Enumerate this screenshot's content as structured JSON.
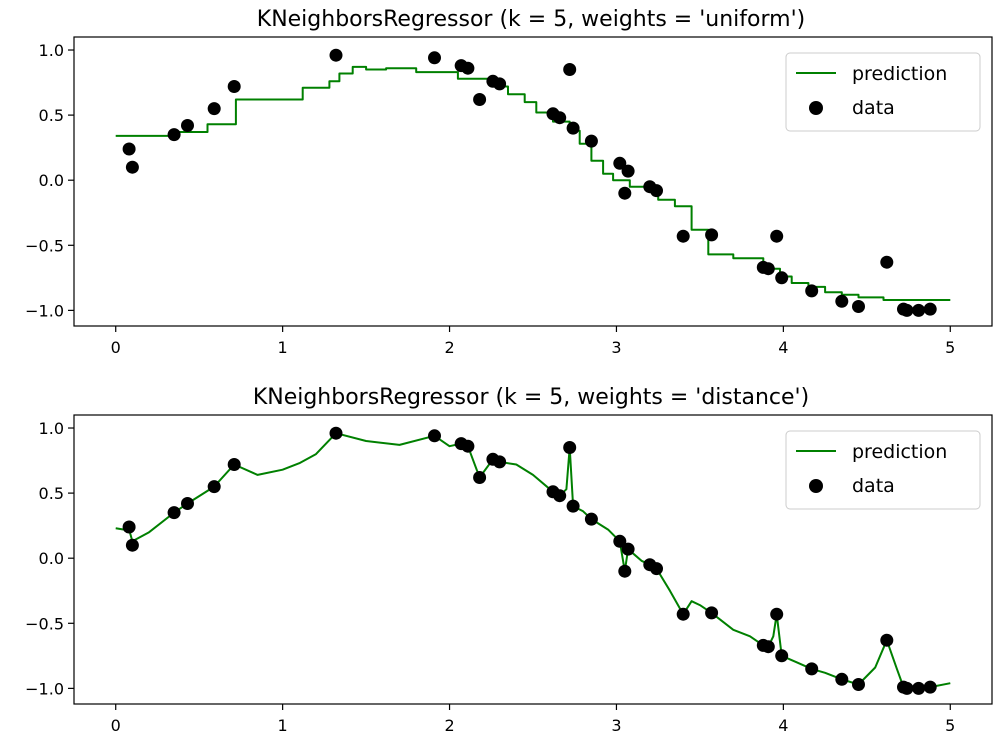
{
  "chart_data": [
    {
      "type": "scatter",
      "title": "KNeighborsRegressor (k = 5, weights = 'uniform')",
      "xlabel": "",
      "ylabel": "",
      "xlim": [
        -0.25,
        5.25
      ],
      "ylim": [
        -1.12,
        1.1
      ],
      "xticks": [
        0,
        1,
        2,
        3,
        4,
        5
      ],
      "xtick_labels": [
        "0",
        "1",
        "2",
        "3",
        "4",
        "5"
      ],
      "yticks": [
        1.0,
        0.5,
        0.0,
        -0.5,
        -1.0
      ],
      "ytick_labels": [
        "1.0",
        "0.5",
        "0.0",
        "−0.5",
        "−1.0"
      ],
      "grid": false,
      "legend_position": "top-right",
      "legend": [
        "prediction",
        "data"
      ],
      "colors": {
        "prediction": "#008000",
        "data": "#000000"
      },
      "series": [
        {
          "name": "prediction",
          "type": "step-line",
          "x": [
            0.0,
            0.35,
            0.35,
            0.55,
            0.55,
            0.72,
            0.72,
            1.12,
            1.12,
            1.28,
            1.28,
            1.34,
            1.34,
            1.42,
            1.42,
            1.5,
            1.5,
            1.62,
            1.62,
            1.8,
            1.8,
            2.05,
            2.05,
            2.25,
            2.25,
            2.35,
            2.35,
            2.45,
            2.45,
            2.52,
            2.52,
            2.62,
            2.62,
            2.72,
            2.72,
            2.78,
            2.78,
            2.85,
            2.85,
            2.92,
            2.92,
            2.98,
            2.98,
            3.08,
            3.08,
            3.18,
            3.18,
            3.25,
            3.25,
            3.35,
            3.35,
            3.45,
            3.45,
            3.55,
            3.55,
            3.7,
            3.7,
            3.88,
            3.88,
            3.98,
            3.98,
            4.05,
            4.05,
            4.15,
            4.15,
            4.25,
            4.25,
            4.35,
            4.35,
            4.45,
            4.45,
            4.6,
            4.6,
            5.0
          ],
          "y": [
            0.34,
            0.34,
            0.37,
            0.37,
            0.43,
            0.43,
            0.62,
            0.62,
            0.71,
            0.71,
            0.76,
            0.76,
            0.82,
            0.82,
            0.87,
            0.87,
            0.85,
            0.85,
            0.86,
            0.86,
            0.83,
            0.83,
            0.78,
            0.78,
            0.72,
            0.72,
            0.66,
            0.66,
            0.6,
            0.6,
            0.52,
            0.52,
            0.45,
            0.45,
            0.38,
            0.38,
            0.28,
            0.28,
            0.15,
            0.15,
            0.05,
            0.05,
            0.0,
            0.0,
            -0.05,
            -0.05,
            -0.08,
            -0.08,
            -0.15,
            -0.15,
            -0.2,
            -0.2,
            -0.38,
            -0.38,
            -0.57,
            -0.57,
            -0.6,
            -0.6,
            -0.68,
            -0.68,
            -0.74,
            -0.74,
            -0.79,
            -0.79,
            -0.82,
            -0.82,
            -0.86,
            -0.86,
            -0.88,
            -0.88,
            -0.9,
            -0.9,
            -0.92,
            -0.92
          ]
        },
        {
          "name": "data",
          "x": [
            0.08,
            0.1,
            0.35,
            0.43,
            0.59,
            0.71,
            1.32,
            1.91,
            2.07,
            2.11,
            2.18,
            2.26,
            2.3,
            2.62,
            2.66,
            2.72,
            2.74,
            2.85,
            3.02,
            3.05,
            3.07,
            3.2,
            3.24,
            3.4,
            3.57,
            3.88,
            3.91,
            3.96,
            3.99,
            4.17,
            4.35,
            4.45,
            4.62,
            4.72,
            4.74,
            4.81,
            4.88
          ],
          "y": [
            0.24,
            0.1,
            0.35,
            0.42,
            0.55,
            0.72,
            0.96,
            0.94,
            0.88,
            0.86,
            0.62,
            0.76,
            0.74,
            0.51,
            0.48,
            0.85,
            0.4,
            0.3,
            0.13,
            -0.1,
            0.07,
            -0.05,
            -0.08,
            -0.43,
            -0.42,
            -0.67,
            -0.68,
            -0.43,
            -0.75,
            -0.85,
            -0.93,
            -0.97,
            -0.63,
            -0.99,
            -1.0,
            -1.0,
            -0.99
          ]
        }
      ]
    },
    {
      "type": "scatter",
      "title": "KNeighborsRegressor (k = 5, weights = 'distance')",
      "xlabel": "",
      "ylabel": "",
      "xlim": [
        -0.25,
        5.25
      ],
      "ylim": [
        -1.12,
        1.1
      ],
      "xticks": [
        0,
        1,
        2,
        3,
        4,
        5
      ],
      "xtick_labels": [
        "0",
        "1",
        "2",
        "3",
        "4",
        "5"
      ],
      "yticks": [
        1.0,
        0.5,
        0.0,
        -0.5,
        -1.0
      ],
      "ytick_labels": [
        "1.0",
        "0.5",
        "0.0",
        "−0.5",
        "−1.0"
      ],
      "grid": false,
      "legend_position": "top-right",
      "legend": [
        "prediction",
        "data"
      ],
      "colors": {
        "prediction": "#008000",
        "data": "#000000"
      },
      "series": [
        {
          "name": "prediction",
          "type": "line",
          "x": [
            0.0,
            0.05,
            0.08,
            0.1,
            0.2,
            0.35,
            0.43,
            0.59,
            0.71,
            0.85,
            1.0,
            1.1,
            1.2,
            1.32,
            1.5,
            1.7,
            1.91,
            2.0,
            2.07,
            2.11,
            2.18,
            2.26,
            2.3,
            2.4,
            2.5,
            2.62,
            2.66,
            2.7,
            2.72,
            2.74,
            2.8,
            2.85,
            2.95,
            3.02,
            3.05,
            3.07,
            3.15,
            3.2,
            3.24,
            3.32,
            3.4,
            3.45,
            3.5,
            3.57,
            3.7,
            3.8,
            3.88,
            3.91,
            3.94,
            3.96,
            3.99,
            4.08,
            4.17,
            4.25,
            4.35,
            4.45,
            4.55,
            4.62,
            4.68,
            4.72,
            4.74,
            4.81,
            4.88,
            5.0
          ],
          "y": [
            0.23,
            0.22,
            0.22,
            0.13,
            0.2,
            0.35,
            0.42,
            0.55,
            0.72,
            0.64,
            0.68,
            0.73,
            0.8,
            0.96,
            0.9,
            0.87,
            0.94,
            0.86,
            0.88,
            0.86,
            0.62,
            0.76,
            0.74,
            0.72,
            0.64,
            0.51,
            0.48,
            0.53,
            0.85,
            0.4,
            0.36,
            0.3,
            0.22,
            0.13,
            -0.1,
            0.07,
            -0.02,
            -0.05,
            -0.08,
            -0.25,
            -0.43,
            -0.33,
            -0.36,
            -0.42,
            -0.55,
            -0.6,
            -0.67,
            -0.68,
            -0.6,
            -0.43,
            -0.75,
            -0.8,
            -0.85,
            -0.88,
            -0.93,
            -0.97,
            -0.84,
            -0.63,
            -0.85,
            -0.99,
            -1.0,
            -1.0,
            -0.99,
            -0.96
          ]
        },
        {
          "name": "data",
          "x": [
            0.08,
            0.1,
            0.35,
            0.43,
            0.59,
            0.71,
            1.32,
            1.91,
            2.07,
            2.11,
            2.18,
            2.26,
            2.3,
            2.62,
            2.66,
            2.72,
            2.74,
            2.85,
            3.02,
            3.05,
            3.07,
            3.2,
            3.24,
            3.4,
            3.57,
            3.88,
            3.91,
            3.96,
            3.99,
            4.17,
            4.35,
            4.45,
            4.62,
            4.72,
            4.74,
            4.81,
            4.88
          ],
          "y": [
            0.24,
            0.1,
            0.35,
            0.42,
            0.55,
            0.72,
            0.96,
            0.94,
            0.88,
            0.86,
            0.62,
            0.76,
            0.74,
            0.51,
            0.48,
            0.85,
            0.4,
            0.3,
            0.13,
            -0.1,
            0.07,
            -0.05,
            -0.08,
            -0.43,
            -0.42,
            -0.67,
            -0.68,
            -0.43,
            -0.75,
            -0.85,
            -0.93,
            -0.97,
            -0.63,
            -0.99,
            -1.0,
            -1.0,
            -0.99
          ]
        }
      ]
    }
  ]
}
